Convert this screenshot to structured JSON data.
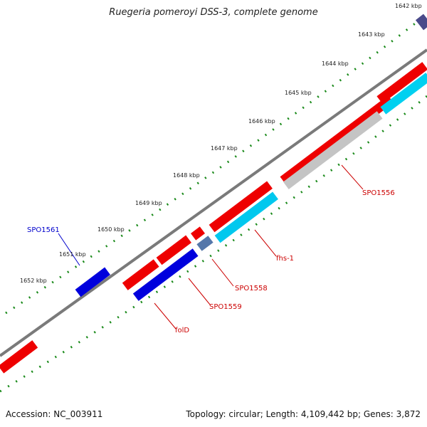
{
  "title": "Ruegeria pomeroyi DSS-3, complete genome",
  "ticks": [
    "1642 kbp",
    "1643 kbp",
    "1644 kbp",
    "1645 kbp",
    "1646 kbp",
    "1647 kbp",
    "1648 kbp",
    "1649 kbp",
    "1650 kbp",
    "1651 kbp",
    "1652 kbp"
  ],
  "genes": [
    {
      "label": "SPO1561",
      "color": "#0000cc"
    },
    {
      "label": "SPO1556",
      "color": "#cc0000"
    },
    {
      "label": "fhs-1",
      "color": "#cc0000"
    },
    {
      "label": "SPO1558",
      "color": "#cc0000"
    },
    {
      "label": "SPO1559",
      "color": "#cc0000"
    },
    {
      "label": "folD",
      "color": "#cc0000"
    }
  ],
  "colors": {
    "forward": "#ee0000",
    "reverse": "#0000dd",
    "cyan": "#00c8ee",
    "grey": "#c8c8c8",
    "steel": "#5577aa",
    "purple": "#4a4a8a",
    "tick": "#1a8a1a",
    "backbone": "#777777"
  },
  "footer": {
    "accession": "Accession: NC_003911",
    "summary": "Topology: circular; Length: 4,109,442 bp; Genes: 3,872"
  }
}
